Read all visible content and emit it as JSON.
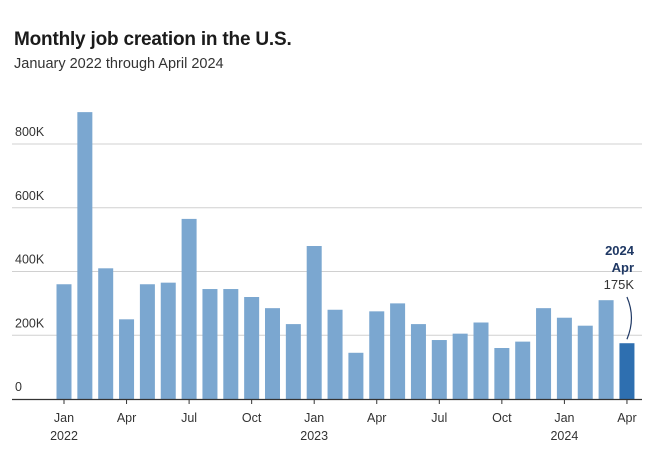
{
  "title": "Monthly job creation in the U.S.",
  "subtitle": "January 2022 through April 2024",
  "colors": {
    "bar": "#7ba7d0",
    "highlight": "#2e6fb0",
    "grid": "#d0d0d0",
    "axis": "#333333",
    "annotation": "#1f3864"
  },
  "chart_data": {
    "type": "bar",
    "title": "Monthly job creation in the U.S.",
    "subtitle": "January 2022 through April 2024",
    "categories": [
      "2022-01",
      "2022-02",
      "2022-03",
      "2022-04",
      "2022-05",
      "2022-06",
      "2022-07",
      "2022-08",
      "2022-09",
      "2022-10",
      "2022-11",
      "2022-12",
      "2023-01",
      "2023-02",
      "2023-03",
      "2023-04",
      "2023-05",
      "2023-06",
      "2023-07",
      "2023-08",
      "2023-09",
      "2023-10",
      "2023-11",
      "2023-12",
      "2024-01",
      "2024-02",
      "2024-03",
      "2024-04"
    ],
    "values": [
      360,
      900,
      410,
      250,
      360,
      365,
      565,
      345,
      345,
      320,
      285,
      235,
      480,
      280,
      145,
      275,
      300,
      235,
      185,
      205,
      240,
      160,
      180,
      285,
      255,
      230,
      310,
      175
    ],
    "value_unit": "K",
    "ylim": [
      0,
      900
    ],
    "yticks": [
      "0",
      "200K",
      "400K",
      "600K",
      "800K"
    ],
    "ytick_values": [
      0,
      200,
      400,
      600,
      800
    ],
    "xticks": [
      {
        "index": 0,
        "label": "Jan",
        "year": "2022"
      },
      {
        "index": 3,
        "label": "Apr"
      },
      {
        "index": 6,
        "label": "Jul"
      },
      {
        "index": 9,
        "label": "Oct"
      },
      {
        "index": 12,
        "label": "Jan",
        "year": "2023"
      },
      {
        "index": 15,
        "label": "Apr"
      },
      {
        "index": 18,
        "label": "Jul"
      },
      {
        "index": 21,
        "label": "Oct"
      },
      {
        "index": 24,
        "label": "Jan",
        "year": "2024"
      },
      {
        "index": 27,
        "label": "Apr"
      }
    ],
    "highlight_index": 27,
    "annotation": {
      "line1": "2024",
      "line2": "Apr",
      "value": "175K"
    },
    "grid": true,
    "xlabel": "",
    "ylabel": ""
  }
}
